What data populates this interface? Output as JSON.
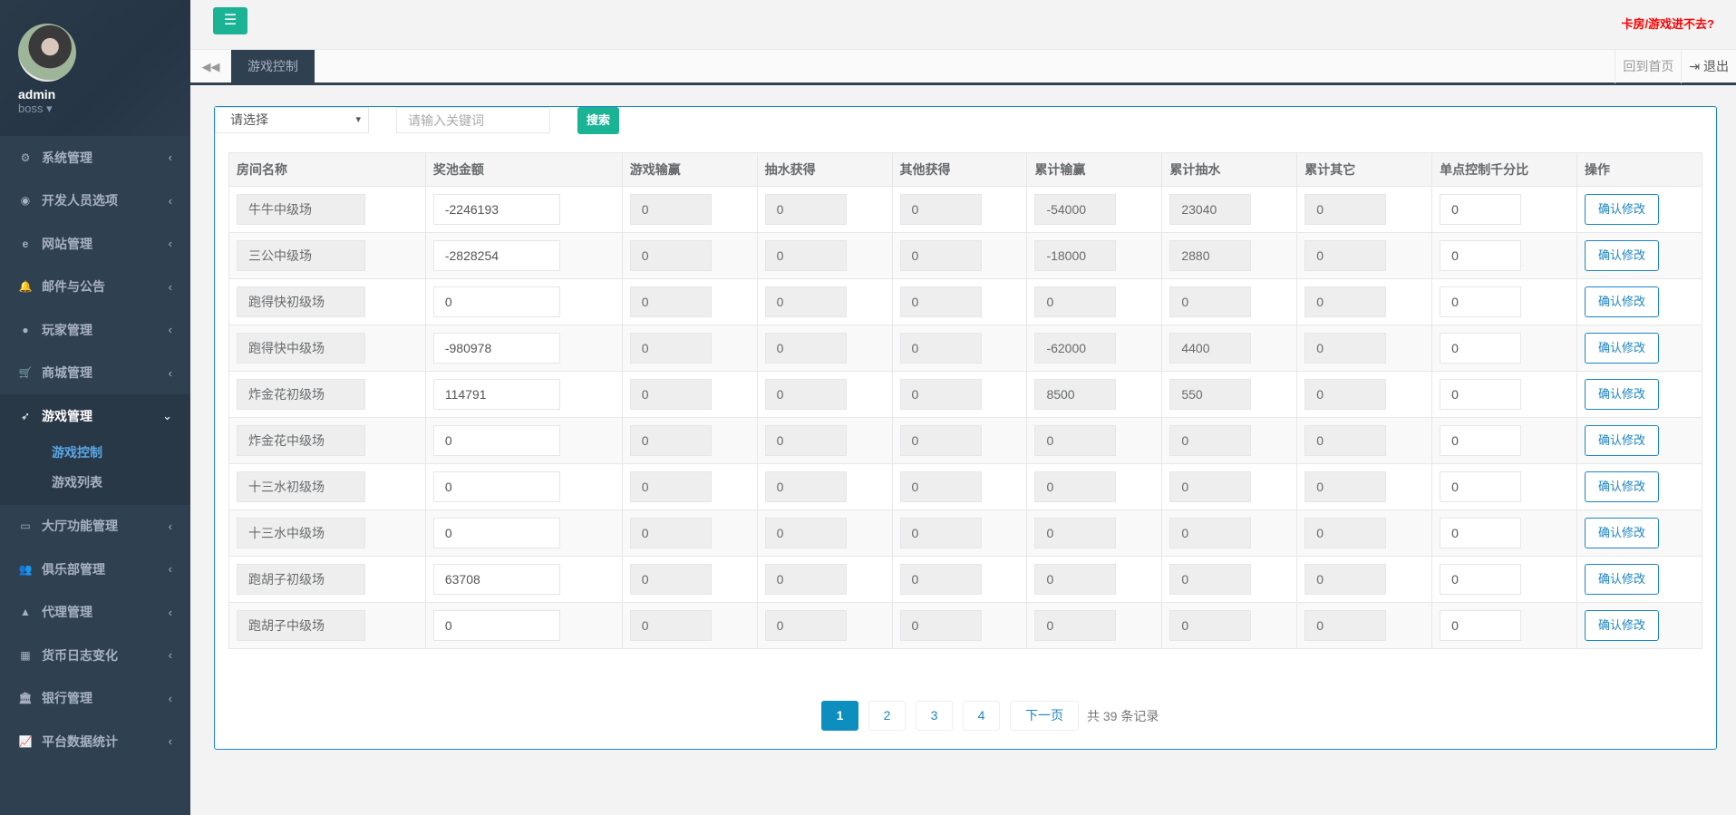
{
  "user": {
    "name": "admin",
    "role": "boss"
  },
  "sidebar": {
    "items": [
      {
        "label": "系统管理",
        "icon": "cogs-icon",
        "glyph": "⚙"
      },
      {
        "label": "开发人员选项",
        "icon": "gamepad-icon",
        "glyph": "◉"
      },
      {
        "label": "网站管理",
        "icon": "ie-icon",
        "glyph": "e"
      },
      {
        "label": "邮件与公告",
        "icon": "bell-icon",
        "glyph": "🔔"
      },
      {
        "label": "玩家管理",
        "icon": "user-icon",
        "glyph": "●"
      },
      {
        "label": "商城管理",
        "icon": "cart-icon",
        "glyph": "🛒"
      },
      {
        "label": "游戏管理",
        "icon": "rocket-icon",
        "glyph": "➶"
      },
      {
        "label": "大厅功能管理",
        "icon": "desktop-icon",
        "glyph": "▭"
      },
      {
        "label": "俱乐部管理",
        "icon": "users-icon",
        "glyph": "👥"
      },
      {
        "label": "代理管理",
        "icon": "user-secret-icon",
        "glyph": "▲"
      },
      {
        "label": "货币日志变化",
        "icon": "calendar-icon",
        "glyph": "▦"
      },
      {
        "label": "银行管理",
        "icon": "bank-icon",
        "glyph": "🏛"
      },
      {
        "label": "平台数据统计",
        "icon": "line-chart-icon",
        "glyph": "📈"
      }
    ],
    "submenu": [
      {
        "label": "游戏控制",
        "active": true
      },
      {
        "label": "游戏列表",
        "active": false
      }
    ]
  },
  "topbar": {
    "help_link": "卡房/游戏进不去?"
  },
  "tabs": {
    "active": "游戏控制",
    "home": "回到首页",
    "logout": "退出"
  },
  "filters": {
    "select_value": "请选择",
    "keyword_placeholder": "请输入关键词",
    "search_label": "搜索"
  },
  "table": {
    "headers": [
      "房间名称",
      "奖池金额",
      "游戏输赢",
      "抽水获得",
      "其他获得",
      "累计输赢",
      "累计抽水",
      "累计其它",
      "单点控制千分比",
      "操作"
    ],
    "action_label": "确认修改",
    "rows": [
      [
        "牛牛中级场",
        "-2246193",
        "0",
        "0",
        "0",
        "-54000",
        "23040",
        "0",
        "0"
      ],
      [
        "三公中级场",
        "-2828254",
        "0",
        "0",
        "0",
        "-18000",
        "2880",
        "0",
        "0"
      ],
      [
        "跑得快初级场",
        "0",
        "0",
        "0",
        "0",
        "0",
        "0",
        "0",
        "0"
      ],
      [
        "跑得快中级场",
        "-980978",
        "0",
        "0",
        "0",
        "-62000",
        "4400",
        "0",
        "0"
      ],
      [
        "炸金花初级场",
        "114791",
        "0",
        "0",
        "0",
        "8500",
        "550",
        "0",
        "0"
      ],
      [
        "炸金花中级场",
        "0",
        "0",
        "0",
        "0",
        "0",
        "0",
        "0",
        "0"
      ],
      [
        "十三水初级场",
        "0",
        "0",
        "0",
        "0",
        "0",
        "0",
        "0",
        "0"
      ],
      [
        "十三水中级场",
        "0",
        "0",
        "0",
        "0",
        "0",
        "0",
        "0",
        "0"
      ],
      [
        "跑胡子初级场",
        "63708",
        "0",
        "0",
        "0",
        "0",
        "0",
        "0",
        "0"
      ],
      [
        "跑胡子中级场",
        "0",
        "0",
        "0",
        "0",
        "0",
        "0",
        "0",
        "0"
      ]
    ]
  },
  "pagination": {
    "pages": [
      "1",
      "2",
      "3",
      "4"
    ],
    "current": "1",
    "next": "下一页",
    "total": "共 39 条记录"
  }
}
